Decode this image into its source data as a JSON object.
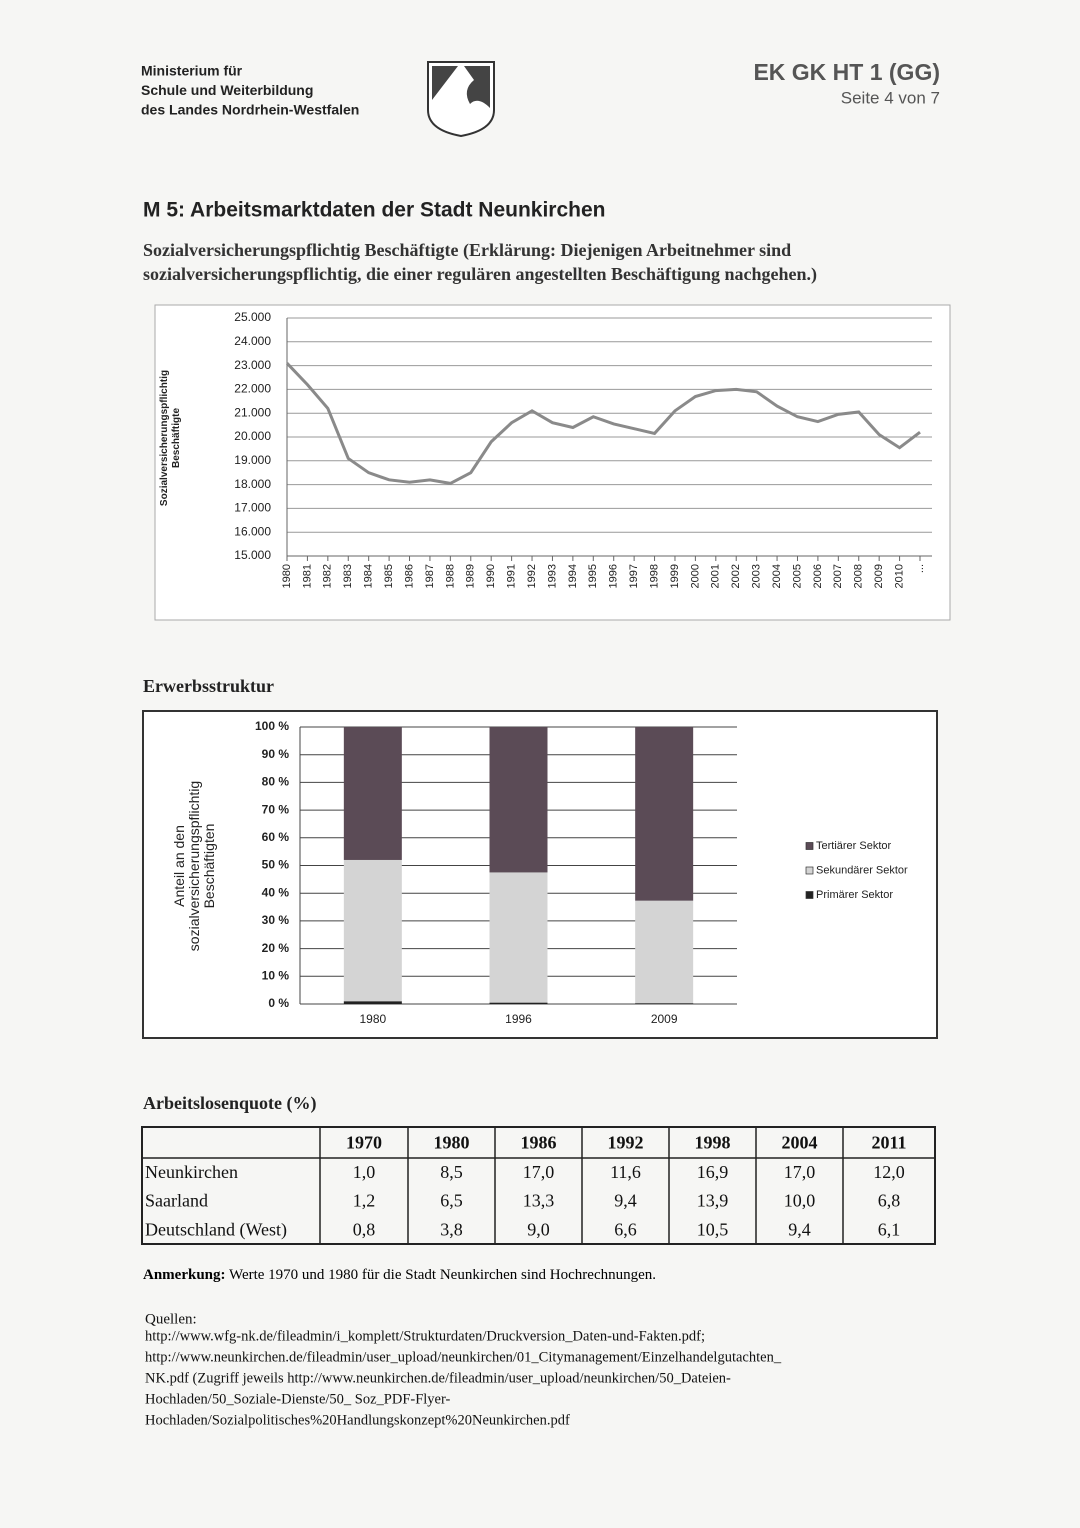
{
  "header": {
    "ministry": [
      "Ministerium für",
      "Schule und Weiterbildung",
      "des Landes Nordrhein-Westfalen"
    ],
    "code": "EK GK HT 1 (GG)",
    "page": "Seite 4 von 7"
  },
  "heading": "M 5: Arbeitsmarktdaten der Stadt Neunkirchen",
  "subtitle": [
    "Sozialversicherungspflichtig Beschäftigte (Erklärung: Diejenigen Arbeitnehmer sind",
    "sozialversicherungspflichtig, die einer regulären angestellten Beschäftigung nachgehen.)"
  ],
  "chart_data": [
    {
      "type": "line",
      "y_label": [
        "Sozialversicherungspflichtig",
        "Beschäftigte"
      ],
      "categories": [
        "1980",
        "1981",
        "1982",
        "1983",
        "1984",
        "1985",
        "1986",
        "1987",
        "1988",
        "1989",
        "1990",
        "1991",
        "1992",
        "1993",
        "1994",
        "1995",
        "1996",
        "1997",
        "1998",
        "1999",
        "2000",
        "2001",
        "2002",
        "2003",
        "2004",
        "2005",
        "2006",
        "2007",
        "2008",
        "2009",
        "2010",
        "..."
      ],
      "values": [
        23100,
        22200,
        21200,
        19100,
        18500,
        18200,
        18100,
        18200,
        18050,
        18500,
        19800,
        20600,
        21100,
        20600,
        20400,
        20850,
        20550,
        20350,
        20150,
        21100,
        21700,
        21950,
        22000,
        21900,
        21300,
        20850,
        20650,
        20950,
        21050,
        20100,
        19550,
        20200
      ],
      "color": "#8a8a8a",
      "ylim": [
        15000,
        25000
      ],
      "yticks": [
        {
          "value": 15000,
          "label": "15.000"
        },
        {
          "value": 16000,
          "label": "16.000"
        },
        {
          "value": 17000,
          "label": "17.000"
        },
        {
          "value": 18000,
          "label": "18.000"
        },
        {
          "value": 19000,
          "label": "19.000"
        },
        {
          "value": 20000,
          "label": "20.000"
        },
        {
          "value": 21000,
          "label": "21.000"
        },
        {
          "value": 22000,
          "label": "22.000"
        },
        {
          "value": 23000,
          "label": "23.000"
        },
        {
          "value": 24000,
          "label": "24.000"
        },
        {
          "value": 25000,
          "label": "25.000"
        }
      ],
      "grid": true
    },
    {
      "type": "stacked_bar",
      "title": "Erwerbsstruktur",
      "y_label": [
        "Anteil an den",
        "sozialversicherungspflichtig",
        "Beschäftigten"
      ],
      "categories": [
        "1980",
        "1996",
        "2009"
      ],
      "series": [
        {
          "name": "Primärer Sektor",
          "color": "#222222",
          "values": [
            1,
            0.5,
            0.3
          ]
        },
        {
          "name": "Sekundärer Sektor",
          "color": "#d4d4d4",
          "values": [
            51,
            47,
            37
          ]
        },
        {
          "name": "Tertiärer Sektor",
          "color": "#5b4b56",
          "values": [
            48,
            52.5,
            62.7
          ]
        }
      ],
      "ylim": [
        0,
        100
      ],
      "yticks": [
        {
          "value": 0,
          "label": "0 %"
        },
        {
          "value": 10,
          "label": "10 %"
        },
        {
          "value": 20,
          "label": "20 %"
        },
        {
          "value": 30,
          "label": "30 %"
        },
        {
          "value": 40,
          "label": "40 %"
        },
        {
          "value": 50,
          "label": "50 %"
        },
        {
          "value": 60,
          "label": "60 %"
        },
        {
          "value": 70,
          "label": "70 %"
        },
        {
          "value": 80,
          "label": "80 %"
        },
        {
          "value": 90,
          "label": "90 %"
        },
        {
          "value": 100,
          "label": "100 %"
        }
      ],
      "grid": true,
      "legend": "right"
    }
  ],
  "table": {
    "title": "Arbeitslosenquote (%)",
    "header": [
      "",
      "1970",
      "1980",
      "1986",
      "1992",
      "1998",
      "2004",
      "2011"
    ],
    "rows": [
      [
        "Neunkirchen",
        "1,0",
        "8,5",
        "17,0",
        "11,6",
        "16,9",
        "17,0",
        "12,0"
      ],
      [
        "Saarland",
        "1,2",
        "6,5",
        "13,3",
        "9,4",
        "13,9",
        "10,0",
        "6,8"
      ],
      [
        "Deutschland (West)",
        "0,8",
        "3,8",
        "9,0",
        "6,6",
        "10,5",
        "9,4",
        "6,1"
      ]
    ]
  },
  "note": {
    "label": "Anmerkung:",
    "text": "Werte 1970 und 1980 für die Stadt Neunkirchen sind Hochrechnungen."
  },
  "sources": {
    "label": "Quellen:",
    "lines": [
      "http://www.wfg-nk.de/fileadmin/i_komplett/Strukturdaten/Druckversion_Daten-und-Fakten.pdf;",
      "http://www.neunkirchen.de/fileadmin/user_upload/neunkirchen/01_Citymanagement/Einzelhandelgutachten_",
      "NK.pdf (Zugriff jeweils http://www.neunkirchen.de/fileadmin/user_upload/neunkirchen/50_Dateien-",
      "Hochladen/50_Soziale-Dienste/50_ Soz_PDF-Flyer-",
      "Hochladen/Sozialpolitisches%20Handlungskonzept%20Neunkirchen.pdf"
    ]
  }
}
